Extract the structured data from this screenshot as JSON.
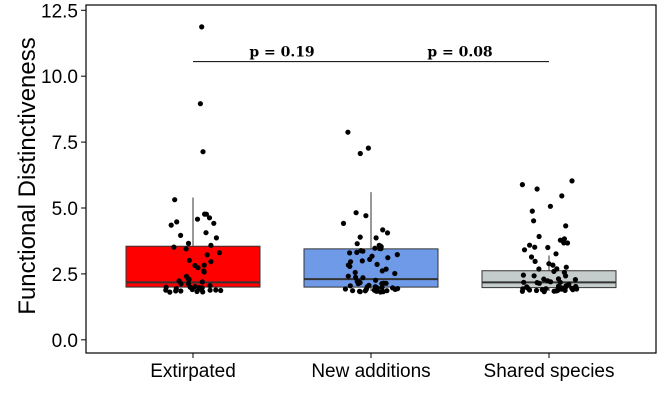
{
  "chart_data": {
    "type": "boxplot",
    "title": "",
    "xlabel": "",
    "ylabel": "Functional Distinctiveness",
    "ylim": [
      -0.5,
      12.7
    ],
    "yticks": [
      0.0,
      2.5,
      5.0,
      7.5,
      10.0,
      12.5
    ],
    "ytick_labels": [
      "0.0",
      "2.5",
      "5.0",
      "7.5",
      "10.0",
      "12.5"
    ],
    "categories": [
      "Extirpated",
      "New additions",
      "Shared species"
    ],
    "colors": {
      "Extirpated": "#ff0000",
      "New additions": "#6f9ae8",
      "Shared species": "#c4cdcb"
    },
    "boxes": [
      {
        "category": "Extirpated",
        "q1": 2.0,
        "median": 2.18,
        "q3": 3.55,
        "whisker_low": 1.85,
        "whisker_high": 5.4
      },
      {
        "category": "New additions",
        "q1": 2.0,
        "median": 2.3,
        "q3": 3.45,
        "whisker_low": 1.85,
        "whisker_high": 5.6
      },
      {
        "category": "Shared species",
        "q1": 1.98,
        "median": 2.18,
        "q3": 2.62,
        "whisker_low": 1.85,
        "whisker_high": 3.2
      }
    ],
    "points": [
      {
        "category": "Extirpated",
        "y": [
          11.85,
          9.0,
          7.15,
          5.35,
          4.8,
          4.75,
          4.6,
          4.55,
          4.5,
          4.45,
          4.35,
          4.05,
          3.95,
          3.9,
          3.65,
          3.55,
          3.5,
          3.45,
          3.3,
          3.2,
          3.05,
          2.95,
          2.85,
          2.8,
          2.7,
          2.6,
          2.55,
          2.4,
          2.35,
          2.25,
          2.2,
          2.15,
          2.1,
          2.1,
          2.05,
          2.05,
          2.0,
          2.0,
          2.0,
          1.95,
          1.95,
          1.95,
          1.9,
          1.9,
          1.9,
          1.9,
          1.88,
          1.87,
          1.86,
          1.85,
          1.85,
          1.85
        ]
      },
      {
        "category": "New additions",
        "y": [
          7.85,
          7.3,
          7.1,
          4.85,
          4.7,
          4.4,
          4.2,
          4.1,
          3.9,
          3.85,
          3.65,
          3.6,
          3.55,
          3.5,
          3.5,
          3.45,
          3.45,
          3.4,
          3.35,
          3.3,
          3.3,
          3.25,
          3.2,
          3.1,
          3.05,
          3.0,
          2.95,
          2.85,
          2.8,
          2.75,
          2.7,
          2.6,
          2.55,
          2.5,
          2.45,
          2.4,
          2.35,
          2.3,
          2.25,
          2.2,
          2.2,
          2.15,
          2.15,
          2.1,
          2.1,
          2.05,
          2.05,
          2.0,
          2.0,
          2.0,
          1.98,
          1.95,
          1.95,
          1.95,
          1.92,
          1.9,
          1.9,
          1.9,
          1.9,
          1.88,
          1.87,
          1.86,
          1.85,
          1.85,
          1.85,
          1.85
        ]
      },
      {
        "category": "Shared species",
        "y": [
          6.05,
          5.9,
          5.75,
          5.5,
          5.1,
          4.85,
          4.55,
          4.3,
          3.95,
          3.85,
          3.75,
          3.7,
          3.65,
          3.55,
          3.5,
          3.5,
          3.4,
          3.3,
          3.1,
          3.0,
          2.9,
          2.8,
          2.75,
          2.7,
          2.65,
          2.6,
          2.55,
          2.5,
          2.45,
          2.4,
          2.35,
          2.3,
          2.3,
          2.25,
          2.2,
          2.2,
          2.15,
          2.15,
          2.1,
          2.1,
          2.05,
          2.05,
          2.05,
          2.0,
          2.0,
          2.0,
          1.98,
          1.95,
          1.95,
          1.95,
          1.93,
          1.92,
          1.9,
          1.9,
          1.9,
          1.9,
          1.88,
          1.88,
          1.87,
          1.86,
          1.85,
          1.85,
          1.85,
          1.85,
          1.85
        ]
      }
    ],
    "annotations": [
      {
        "from": "Extirpated",
        "to": "New additions",
        "y": 10.55,
        "text": "p = 0.19"
      },
      {
        "from": "New additions",
        "to": "Shared species",
        "y": 10.55,
        "text": "p = 0.08"
      }
    ],
    "grid": false,
    "legend": "none"
  }
}
